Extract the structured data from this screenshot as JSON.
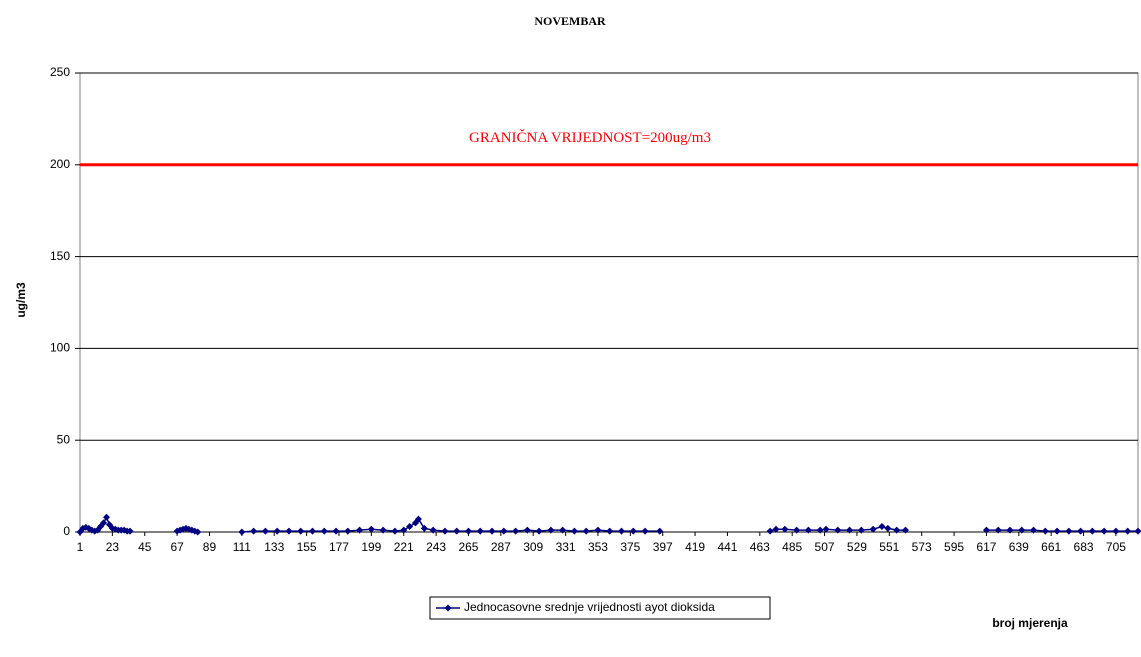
{
  "chart_data": {
    "type": "line",
    "title": "NOVEMBAR",
    "ylabel": "ug/m3",
    "xlabel": "broj mjerenja",
    "annotation": "GRANIČNA VRIJEDNOST=200ug/m3",
    "threshold": 200,
    "threshold_color": "#ff0000",
    "xlim": [
      1,
      720
    ],
    "xticks": [
      1,
      23,
      45,
      67,
      89,
      111,
      133,
      155,
      177,
      199,
      221,
      243,
      265,
      287,
      309,
      331,
      353,
      375,
      397,
      419,
      441,
      463,
      485,
      507,
      529,
      551,
      573,
      595,
      617,
      639,
      661,
      683,
      705
    ],
    "ylim": [
      0,
      250
    ],
    "yticks": [
      0,
      50,
      100,
      150,
      200,
      250
    ],
    "grid": true,
    "legend": "bottom",
    "x": [
      1,
      3,
      5,
      7,
      9,
      11,
      13,
      15,
      17,
      19,
      21,
      23,
      25,
      27,
      29,
      31,
      33,
      35,
      50,
      67,
      69,
      71,
      73,
      75,
      77,
      79,
      81,
      95,
      111,
      119,
      127,
      135,
      143,
      151,
      159,
      167,
      175,
      183,
      191,
      199,
      207,
      215,
      221,
      225,
      229,
      231,
      235,
      241,
      249,
      257,
      265,
      273,
      281,
      289,
      297,
      305,
      313,
      321,
      329,
      337,
      345,
      353,
      361,
      369,
      377,
      385,
      395,
      430,
      470,
      474,
      480,
      488,
      496,
      504,
      508,
      516,
      524,
      532,
      540,
      546,
      550,
      556,
      562,
      590,
      617,
      625,
      633,
      641,
      649,
      657,
      665,
      673,
      681,
      689,
      697,
      705,
      713,
      720
    ],
    "series": [
      {
        "name": "Jednocasovne srednje vrijednosti ayot dioksida",
        "color": "#000080",
        "values": [
          0,
          2,
          2.5,
          2,
          1,
          0.5,
          1,
          3,
          5,
          8,
          4,
          2,
          1.5,
          1,
          1,
          1,
          0.5,
          0.5,
          null,
          0.5,
          1,
          1.5,
          2,
          1.5,
          1,
          0.5,
          0,
          null,
          0,
          0.5,
          0.5,
          0.5,
          0.5,
          0.5,
          0.5,
          0.5,
          0.5,
          0.5,
          1,
          1.5,
          1,
          0.5,
          1,
          3,
          5,
          7,
          2,
          1,
          0.5,
          0.5,
          0.5,
          0.5,
          0.5,
          0.5,
          0.5,
          1,
          0.5,
          1,
          1,
          0.5,
          0.5,
          1,
          0.5,
          0.5,
          0.5,
          0.5,
          0.5,
          null,
          0.5,
          1.5,
          1.5,
          1,
          1,
          1,
          1.5,
          1,
          1,
          1,
          1.5,
          3,
          2,
          1,
          1,
          null,
          1,
          1,
          1,
          1,
          1,
          0.5,
          0.5,
          0.5,
          0.5,
          0.5,
          0.5,
          0.5,
          0.5,
          0.5
        ]
      }
    ]
  }
}
